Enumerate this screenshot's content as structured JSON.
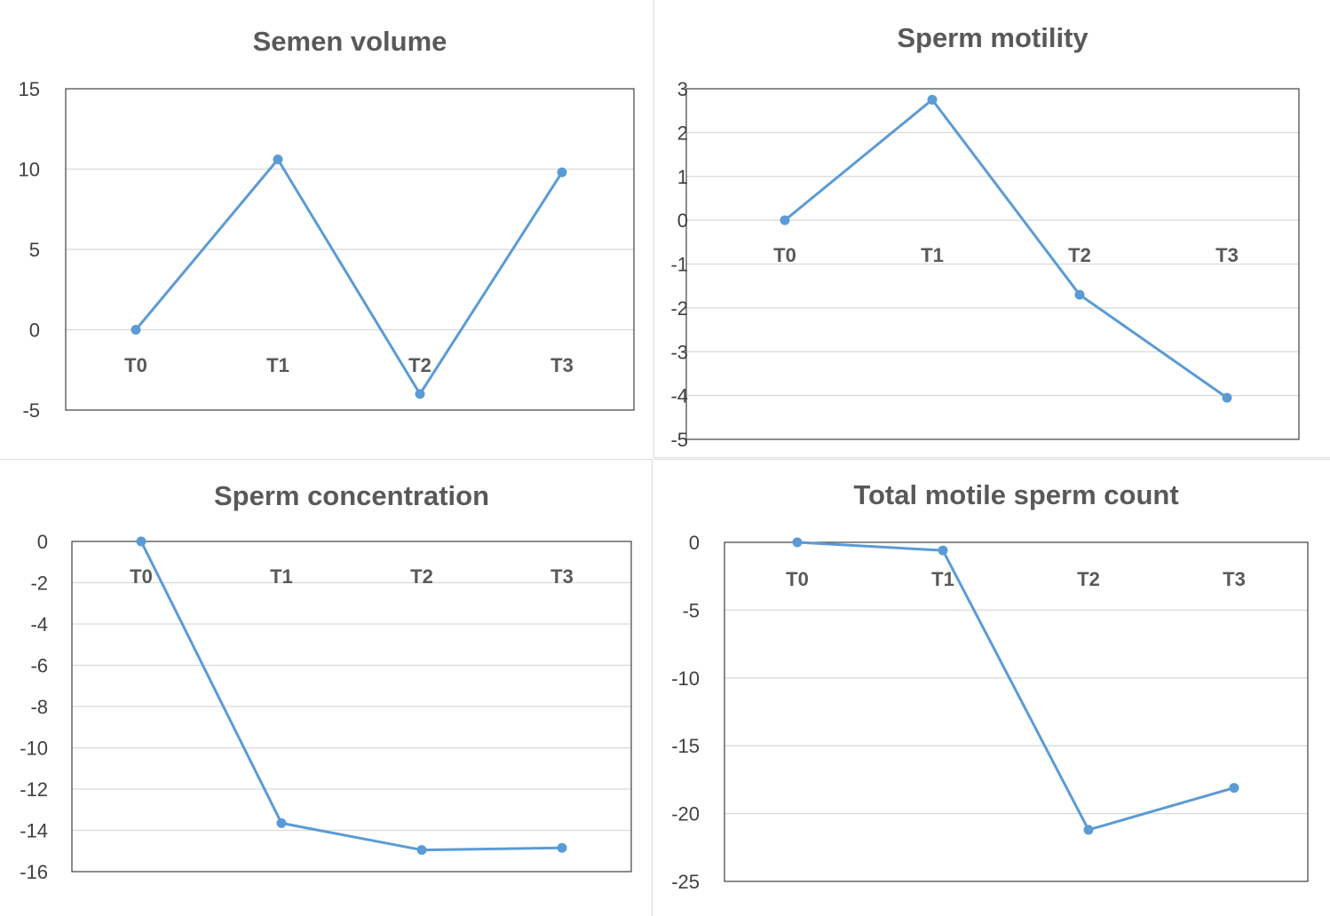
{
  "chart_data": [
    {
      "type": "line",
      "title": "Semen volume",
      "categories": [
        "T0",
        "T1",
        "T2",
        "T3"
      ],
      "series": [
        {
          "values": [
            0,
            10.6,
            -4,
            9.8
          ]
        }
      ],
      "ylim": [
        -5,
        15
      ],
      "yticks": [
        15,
        10,
        5,
        0,
        -5
      ],
      "grid": true,
      "color": "#5b9bd5"
    },
    {
      "type": "line",
      "title": "Sperm motility",
      "categories": [
        "T0",
        "T1",
        "T2",
        "T3"
      ],
      "series": [
        {
          "values": [
            0,
            2.75,
            -1.7,
            -4.05
          ]
        }
      ],
      "ylim": [
        -5,
        3
      ],
      "yticks": [
        3,
        2,
        1,
        0,
        -1,
        -2,
        -3,
        -4,
        -5
      ],
      "grid": true,
      "color": "#5b9bd5"
    },
    {
      "type": "line",
      "title": "Sperm concentration",
      "categories": [
        "T0",
        "T1",
        "T2",
        "T3"
      ],
      "series": [
        {
          "values": [
            0,
            -13.65,
            -14.95,
            -14.85
          ]
        }
      ],
      "ylim": [
        -16,
        0
      ],
      "yticks": [
        0,
        -2,
        -4,
        -6,
        -8,
        -10,
        -12,
        -14,
        -16
      ],
      "grid": true,
      "color": "#5b9bd5"
    },
    {
      "type": "line",
      "title": "Total motile sperm count",
      "categories": [
        "T0",
        "T1",
        "T2",
        "T3"
      ],
      "series": [
        {
          "values": [
            0,
            -0.6,
            -21.2,
            -18.1
          ]
        }
      ],
      "ylim": [
        -25,
        0
      ],
      "yticks": [
        0,
        -5,
        -10,
        -15,
        -20,
        -25
      ],
      "grid": true,
      "color": "#5b9bd5"
    }
  ]
}
